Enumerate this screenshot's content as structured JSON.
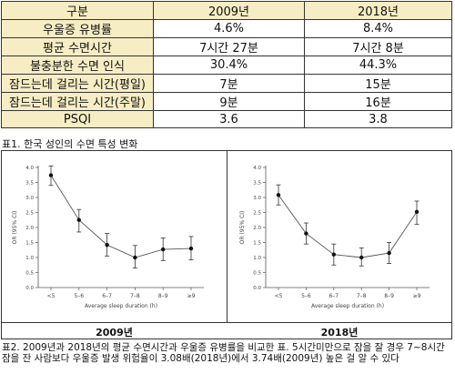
{
  "table": {
    "headers": [
      "구분",
      "2009년",
      "2018년"
    ],
    "rows": [
      {
        "label": "우울증 유병률",
        "v2009": "4.6%",
        "v2018": "8.4%"
      },
      {
        "label": "평균 수면시간",
        "v2009": "7시간 27분",
        "v2018": "7시간 8분"
      },
      {
        "label": "불충분한 수면 인식",
        "v2009": "30.4%",
        "v2018": "44.3%"
      },
      {
        "label": "잠드는데 걸리는 시간(평일)",
        "v2009": "7분",
        "v2018": "15분"
      },
      {
        "label": "잠드는데 걸리는 시간(주말)",
        "v2009": "9분",
        "v2018": "16분"
      },
      {
        "label": "PSQI",
        "v2009": "3.6",
        "v2018": "3.8"
      }
    ]
  },
  "caption1": "표1. 한국 성인의 수면 특성 변화",
  "caption2": "표2. 2009년과 2018년의 평균 수면시간과 우울증 유병률을 비교한 표. 5시간미만으로 잠을 잘 경우 7~8시간 잠을 잔 사람보다 우울증 발생 위험율이 3.08배(2018년)에서 3.74배(2009년) 높은 걸 알 수 있다",
  "chart_data": [
    {
      "type": "line",
      "panel_label": "2009년",
      "categories": [
        "<5",
        "5–6",
        "6–7",
        "7–8",
        "8–9",
        "≥9"
      ],
      "values": [
        3.74,
        2.25,
        1.42,
        1.0,
        1.27,
        1.3
      ],
      "err_low": [
        3.4,
        1.85,
        1.05,
        0.65,
        0.9,
        0.92
      ],
      "err_high": [
        4.05,
        2.6,
        1.8,
        1.4,
        1.65,
        1.7
      ],
      "xlabel": "Average sleep duration (h)",
      "ylabel": "OR (95% CI)",
      "ylim": [
        0,
        4.0
      ],
      "yticks": [
        "0.0",
        "0.5",
        "1.0",
        "1.5",
        "2.0",
        "2.5",
        "3.0",
        "3.5",
        "4.0"
      ]
    },
    {
      "type": "line",
      "panel_label": "2018년",
      "categories": [
        "<5",
        "5–6",
        "6–7",
        "7–8",
        "8–9",
        "≥9"
      ],
      "values": [
        3.08,
        1.8,
        1.1,
        1.0,
        1.15,
        2.52
      ],
      "err_low": [
        2.75,
        1.45,
        0.75,
        0.72,
        0.8,
        2.1
      ],
      "err_high": [
        3.42,
        2.15,
        1.45,
        1.32,
        1.5,
        2.88
      ],
      "xlabel": "Average sleep duration (h)",
      "ylabel": "OR (95% CI)",
      "ylim": [
        0,
        4.0
      ],
      "yticks": [
        "0.0",
        "0.5",
        "1.0",
        "1.5",
        "2.0",
        "2.5",
        "3.0",
        "3.5",
        "4.0"
      ]
    }
  ]
}
